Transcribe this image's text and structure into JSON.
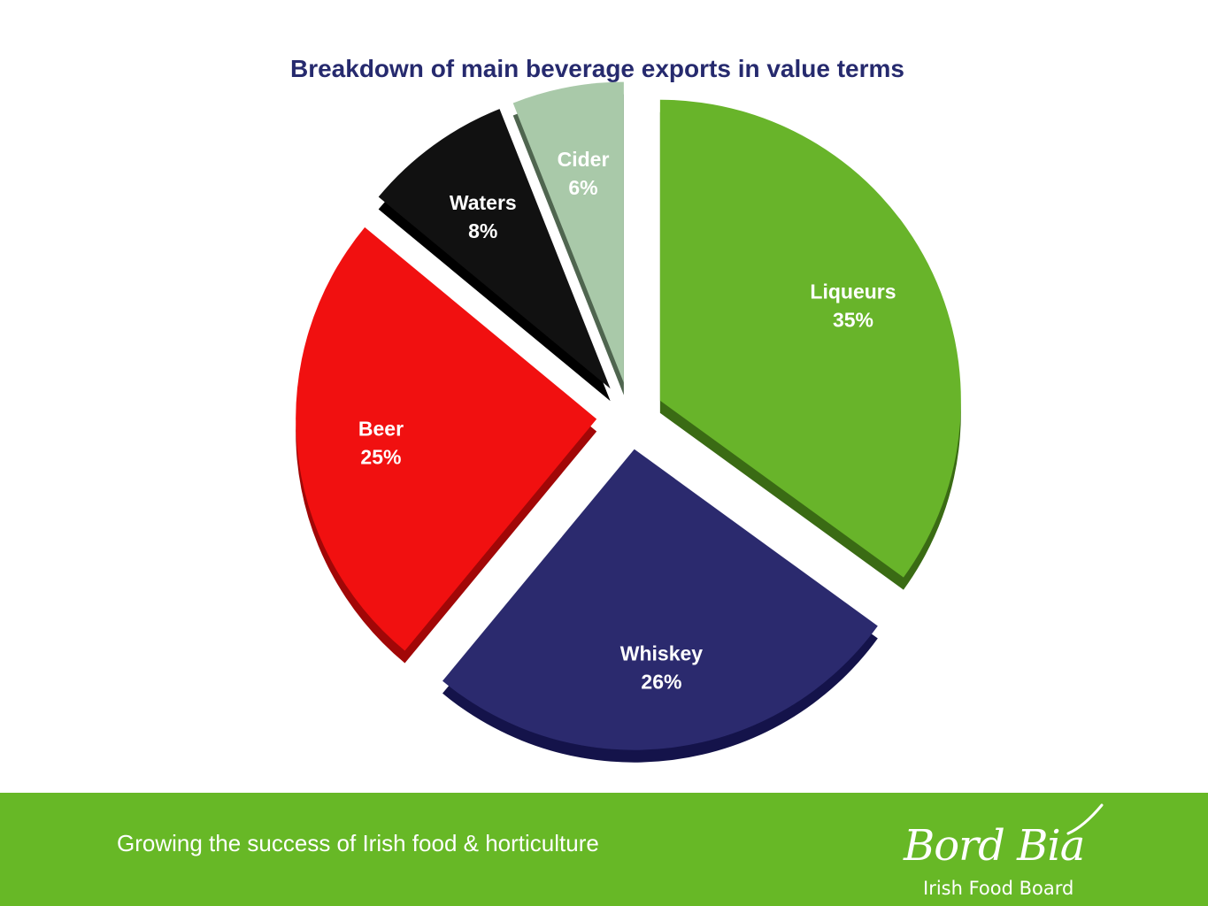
{
  "chart_data": {
    "type": "pie",
    "title": "Breakdown of main beverage exports in value terms",
    "slices": [
      {
        "label": "Liqueurs",
        "value": 35,
        "value_label": "35%",
        "color": "#68b42a",
        "side_color": "#3a6b14",
        "label_color": "#ffffff"
      },
      {
        "label": "Whiskey",
        "value": 26,
        "value_label": "26%",
        "color": "#2b2a6e",
        "side_color": "#14134a",
        "label_color": "#ffffff"
      },
      {
        "label": "Beer",
        "value": 25,
        "value_label": "25%",
        "color": "#f11010",
        "side_color": "#a10707",
        "label_color": "#ffffff"
      },
      {
        "label": "Waters",
        "value": 8,
        "value_label": "8%",
        "color": "#111111",
        "side_color": "#000000",
        "label_color": "#ffffff"
      },
      {
        "label": "Cider",
        "value": 6,
        "value_label": "6%",
        "color": "#a9c9a9",
        "side_color": "#4f654f",
        "label_color": "#ffffff"
      }
    ],
    "exploded": true,
    "three_d": true
  },
  "footer": {
    "tagline": "Growing the success of Irish food & horticulture",
    "logo_name": "Bord Bia",
    "logo_subtitle": "Irish Food Board",
    "background_color": "#67b826"
  }
}
